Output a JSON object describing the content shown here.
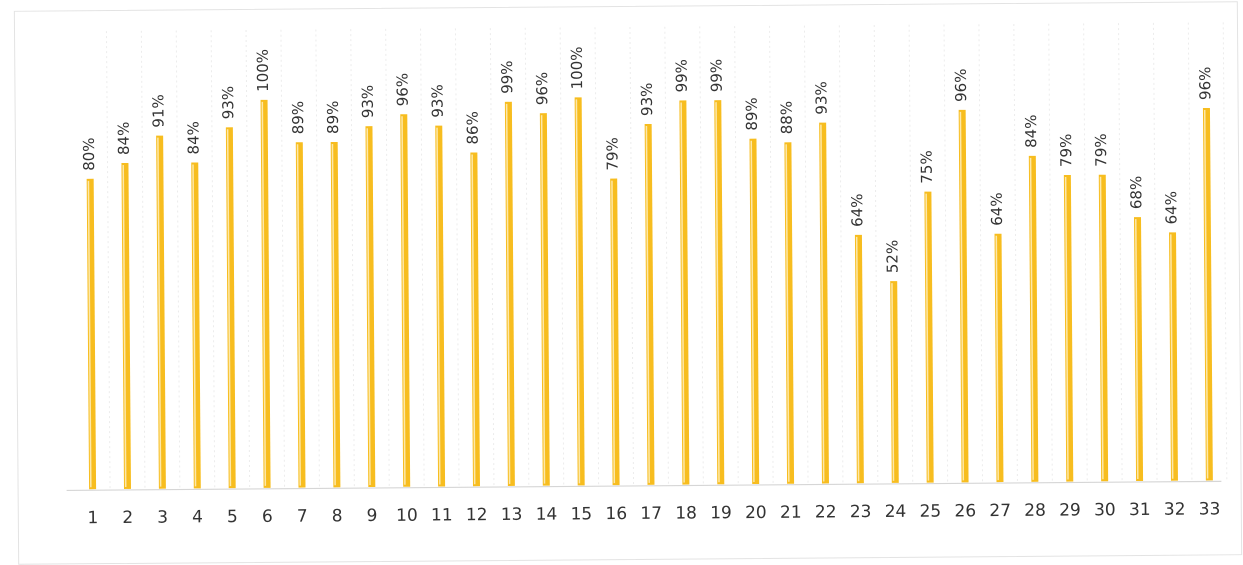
{
  "chart_data": {
    "type": "bar",
    "orientation": "vertical",
    "categories": [
      "1",
      "2",
      "3",
      "4",
      "5",
      "6",
      "7",
      "8",
      "9",
      "10",
      "11",
      "12",
      "13",
      "14",
      "15",
      "16",
      "17",
      "18",
      "19",
      "20",
      "21",
      "22",
      "23",
      "24",
      "25",
      "26",
      "27",
      "28",
      "29",
      "30",
      "31",
      "32",
      "33"
    ],
    "values": [
      80,
      84,
      91,
      84,
      93,
      100,
      89,
      89,
      93,
      96,
      93,
      86,
      99,
      96,
      100,
      79,
      93,
      99,
      99,
      89,
      88,
      93,
      64,
      52,
      75,
      96,
      64,
      84,
      79,
      79,
      68,
      64,
      96
    ],
    "value_labels": [
      "80%",
      "84%",
      "91%",
      "84%",
      "93%",
      "100%",
      "89%",
      "89%",
      "93%",
      "96%",
      "93%",
      "86%",
      "99%",
      "96%",
      "100%",
      "79%",
      "93%",
      "99%",
      "99%",
      "89%",
      "88%",
      "93%",
      "64%",
      "52%",
      "75%",
      "96%",
      "64%",
      "84%",
      "79%",
      "79%",
      "68%",
      "64%",
      "96%"
    ],
    "value_unit": "%",
    "ylim": [
      0,
      100
    ],
    "title": "",
    "xlabel": "",
    "ylabel": "",
    "grid": "vertical dashed",
    "legend": "none",
    "colors": {
      "bar": "#f7bd1f",
      "bar_highlight": "#fde8a8",
      "text": "#333333",
      "axis": "#d6d6d6"
    }
  }
}
